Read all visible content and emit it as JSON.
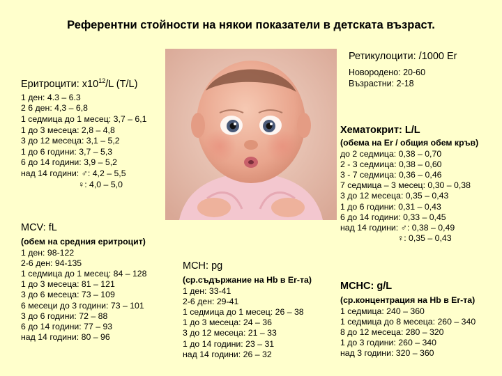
{
  "title": "Референтни стойности на някои показатели в детската възраст.",
  "reticulocytes": {
    "heading": "Ретикулоцити: /1000 Er",
    "lines": [
      "Новородено: 20-60",
      "Възрастни: 2-18"
    ]
  },
  "erythrocytes": {
    "heading_prefix": "Еритроцити:  x10",
    "heading_sup": "12",
    "heading_suffix": "/L (T/L)",
    "lines": [
      "1 ден: 4.3 – 6.3",
      "2 6 ден: 4,3 – 6,8",
      "1 седмица до 1 месец: 3,7 – 6,1",
      "1 до 3 месеца: 2,8 – 4,8",
      "3 до 12 месеца: 3,1 – 5,2",
      "1 до 6 години: 3,7 – 5,3",
      "6 до 14 години: 3,9 – 5,2",
      "над 14 години: ♂: 4,2 – 5,5",
      "                        ♀: 4,0 – 5,0"
    ]
  },
  "hematocrit": {
    "heading": "Хематокрит:   L/L",
    "subheading": "(обема на Er / общия обем кръв)",
    "lines": [
      "до 2 седмица: 0,38 – 0,70",
      "2 - 3 седмица: 0,38 – 0,60",
      "3 - 7 седмица: 0,36 – 0,46",
      "7 седмица – 3 месец: 0,30 – 0,38",
      "3 до 12 месеца: 0,35 – 0,43",
      "1 до 6 години: 0,31 – 0,43",
      "6 до 14 години: 0,33 – 0,45",
      "над 14 години: ♂: 0,38 – 0,49",
      "                        ♀: 0,35 – 0,43"
    ]
  },
  "mcv": {
    "heading": "MCV:  fL",
    "subheading": "(обем на средния еритроцит)",
    "lines": [
      "1 ден: 98-122",
      "2-6 ден: 94-135",
      "1 седмица до 1 месец: 84 – 128",
      "1 до 3 месеца: 81 – 121",
      "3 до 6 месеца: 73 – 109",
      "6 месеци до 3 години: 73 – 101",
      "3 до 6 години: 72 – 88",
      "6 до 14 години: 77 – 93",
      "над 14 години: 80 – 96"
    ]
  },
  "mch": {
    "heading": "MCH:  pg",
    "subheading": "(ср.съдържание на Hb в Er-та)",
    "lines": [
      "1 ден: 33-41",
      "2-6 ден: 29-41",
      "1 седмица до 1 месец: 26 – 38",
      "1 до 3 месеца: 24 – 36",
      "3 до 12 месеца: 21 – 33",
      "1 до 14 години: 23 – 31",
      "над 14 години: 26 – 32"
    ]
  },
  "mchc": {
    "heading": "MCHC: g/L",
    "subheading": "(ср.концентрация на Hb в Er-та)",
    "lines": [
      "1 седмица: 240 – 360",
      "1 седмица до 8 месеца: 260 – 340",
      "8 до 12 месеца: 280 – 320",
      "1 до 3 години: 260 – 340",
      "над 3 години: 320 – 360"
    ]
  },
  "colors": {
    "background": "#ffffcc",
    "text": "#000000"
  }
}
